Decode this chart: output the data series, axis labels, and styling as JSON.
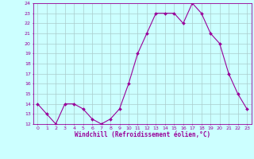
{
  "x": [
    0,
    1,
    2,
    3,
    4,
    5,
    6,
    7,
    8,
    9,
    10,
    11,
    12,
    13,
    14,
    15,
    16,
    17,
    18,
    19,
    20,
    21,
    22,
    23
  ],
  "y": [
    14,
    13,
    12,
    14,
    14,
    13.5,
    12.5,
    12,
    12.5,
    13.5,
    16,
    19,
    21,
    23,
    23,
    23,
    22,
    24,
    23,
    21,
    20,
    17,
    15,
    13.5
  ],
  "ylim": [
    12,
    24
  ],
  "yticks": [
    12,
    13,
    14,
    15,
    16,
    17,
    18,
    19,
    20,
    21,
    22,
    23,
    24
  ],
  "xlabel": "Windchill (Refroidissement éolien,°C)",
  "line_color": "#990099",
  "marker_color": "#990099",
  "bg_color": "#ccffff",
  "grid_color": "#aacccc",
  "axes_label_color": "#990099",
  "tick_color": "#990099"
}
